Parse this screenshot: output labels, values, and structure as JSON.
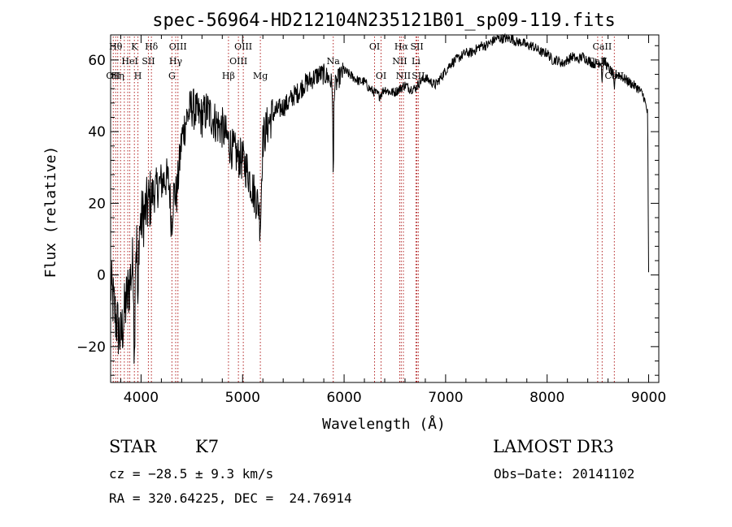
{
  "chart_data": {
    "type": "line",
    "title": "spec-56964-HD212104N235121B01_sp09-119.fits",
    "xlabel": "Wavelength (Å)",
    "ylabel": "Flux (relative)",
    "xlim": [
      3700,
      9100
    ],
    "ylim": [
      -30,
      67
    ],
    "xticks": [
      4000,
      5000,
      6000,
      7000,
      8000,
      9000
    ],
    "yticks": [
      -20,
      0,
      20,
      40,
      60
    ],
    "series": [
      {
        "name": "flux",
        "x": [
          3700,
          3750,
          3800,
          3850,
          3900,
          3950,
          4000,
          4050,
          4100,
          4150,
          4200,
          4250,
          4300,
          4350,
          4400,
          4450,
          4500,
          4550,
          4600,
          4650,
          4700,
          4750,
          4800,
          4850,
          4900,
          4950,
          5000,
          5050,
          5100,
          5150,
          5200,
          5250,
          5300,
          5350,
          5400,
          5450,
          5500,
          5550,
          5600,
          5650,
          5700,
          5750,
          5800,
          5850,
          5900,
          5950,
          6000,
          6050,
          6100,
          6150,
          6200,
          6250,
          6300,
          6350,
          6400,
          6450,
          6500,
          6550,
          6600,
          6650,
          6700,
          6750,
          6800,
          6850,
          6900,
          6950,
          7000,
          7050,
          7100,
          7150,
          7200,
          7250,
          7300,
          7350,
          7400,
          7450,
          7500,
          7550,
          7600,
          7650,
          7700,
          7750,
          7800,
          7850,
          7900,
          7950,
          8000,
          8050,
          8100,
          8150,
          8200,
          8250,
          8300,
          8350,
          8400,
          8450,
          8500,
          8550,
          8600,
          8650,
          8700,
          8750,
          8800,
          8850,
          8900,
          8950,
          8990,
          9000
        ],
        "values": [
          -3,
          -12,
          -18,
          -8,
          0,
          8,
          15,
          18,
          22,
          24,
          26,
          27,
          25,
          22,
          38,
          44,
          47,
          45,
          44,
          46,
          44,
          42,
          41,
          38,
          35,
          33,
          32,
          29,
          24,
          20,
          38,
          42,
          45,
          46,
          47,
          48,
          50,
          51,
          53,
          54,
          55,
          56,
          56,
          55,
          52,
          55,
          57,
          56,
          55,
          54,
          54,
          52,
          51,
          50,
          52,
          51,
          51,
          52,
          53,
          52,
          52,
          54,
          55,
          54,
          53,
          55,
          57,
          59,
          60,
          61,
          62,
          62,
          63,
          64,
          64,
          65,
          66,
          66,
          66,
          66,
          65,
          65,
          64,
          64,
          63,
          62,
          62,
          60,
          60,
          59,
          60,
          61,
          60,
          61,
          60,
          59,
          59,
          60,
          58,
          56,
          56,
          55,
          54,
          53,
          52,
          50,
          45,
          0
        ]
      }
    ],
    "lines": [
      {
        "x": 3726,
        "label": "OII",
        "tier": 2
      },
      {
        "x": 3750,
        "label": "Hθ",
        "tier": 0
      },
      {
        "x": 3770,
        "label": "Hη",
        "tier": 2
      },
      {
        "x": 3798,
        "label": "",
        "tier": 2
      },
      {
        "x": 3835,
        "label": "",
        "tier": 2
      },
      {
        "x": 3869,
        "label": "",
        "tier": 1
      },
      {
        "x": 3889,
        "label": "HeI",
        "tier": 1
      },
      {
        "x": 3934,
        "label": "K",
        "tier": 0
      },
      {
        "x": 3969,
        "label": "H",
        "tier": 2
      },
      {
        "x": 4072,
        "label": "SII",
        "tier": 1
      },
      {
        "x": 4102,
        "label": "Hδ",
        "tier": 0
      },
      {
        "x": 4304,
        "label": "G",
        "tier": 2
      },
      {
        "x": 4341,
        "label": "Hγ",
        "tier": 1
      },
      {
        "x": 4363,
        "label": "OIII",
        "tier": 0
      },
      {
        "x": 4861,
        "label": "Hβ",
        "tier": 2
      },
      {
        "x": 4959,
        "label": "OIII",
        "tier": 1
      },
      {
        "x": 5007,
        "label": "OIII",
        "tier": 0
      },
      {
        "x": 5175,
        "label": "Mg",
        "tier": 2
      },
      {
        "x": 5893,
        "label": "Na",
        "tier": 1
      },
      {
        "x": 6300,
        "label": "OI",
        "tier": 0
      },
      {
        "x": 6364,
        "label": "OI",
        "tier": 2
      },
      {
        "x": 6548,
        "label": "NII",
        "tier": 1
      },
      {
        "x": 6563,
        "label": "Hα",
        "tier": 0
      },
      {
        "x": 6584,
        "label": "NII",
        "tier": 2
      },
      {
        "x": 6708,
        "label": "Li",
        "tier": 1
      },
      {
        "x": 6717,
        "label": "SII",
        "tier": 0
      },
      {
        "x": 6731,
        "label": "SII",
        "tier": 2
      },
      {
        "x": 8498,
        "label": "CaII",
        "tier": 1
      },
      {
        "x": 8542,
        "label": "CaII",
        "tier": 0
      },
      {
        "x": 8662,
        "label": "CaII",
        "tier": 2
      }
    ],
    "colors": {
      "line": "#b22222",
      "spectrum": "#000000"
    }
  },
  "footer": {
    "object_class": "STAR",
    "subclass": "K7",
    "survey": "LAMOST DR3",
    "cz": "cz = −28.5 ± 9.3 km/s",
    "obs_date": "Obs−Date: 20141102",
    "coords": "RA = 320.64225, DEC =  24.76914"
  }
}
